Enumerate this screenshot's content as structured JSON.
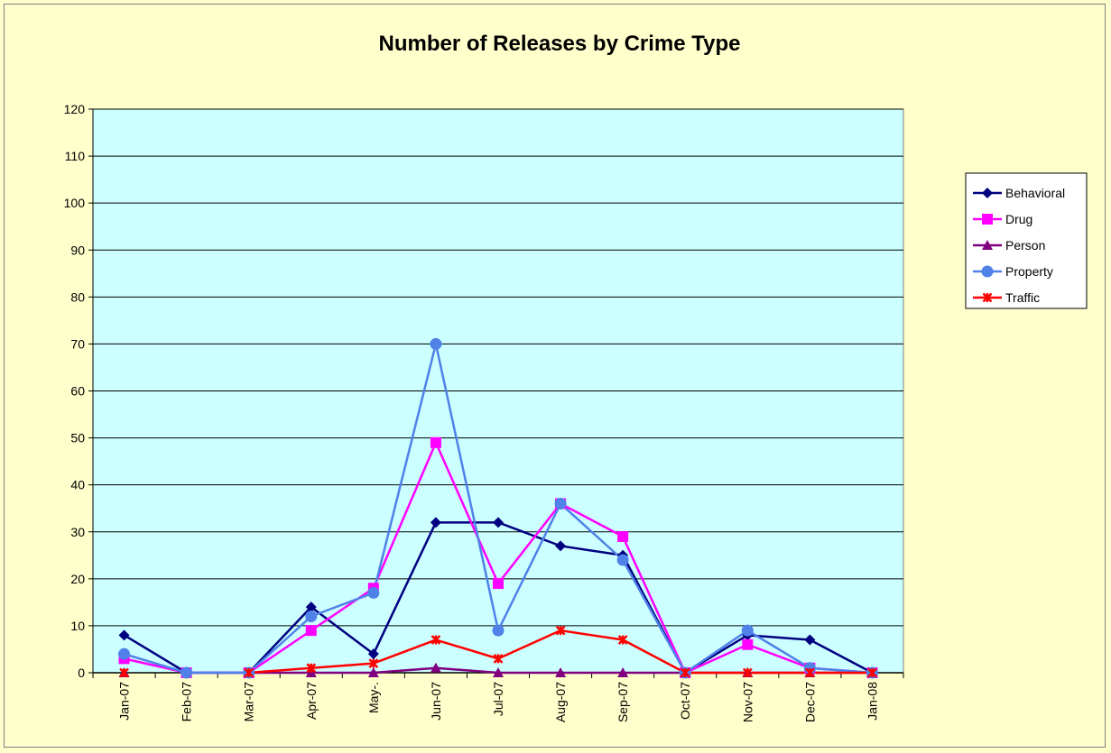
{
  "colors": {
    "page_background": "#ffffcc",
    "plot_background": "#ccffff",
    "gridline": "#000000",
    "border": "#7f7f7f"
  },
  "chart_data": {
    "type": "line",
    "title": "Number of Releases by Crime Type",
    "xlabel": "",
    "ylabel": "",
    "categories": [
      "Jan-07",
      "Feb-07",
      "Mar-07",
      "Apr-07",
      "May-.",
      "Jun-07",
      "Jul-07",
      "Aug-07",
      "Sep-07",
      "Oct-07",
      "Nov-07",
      "Dec-07",
      "Jan-08"
    ],
    "ylim": [
      0,
      120
    ],
    "yticks": [
      0,
      10,
      20,
      30,
      40,
      50,
      60,
      70,
      80,
      90,
      100,
      110,
      120
    ],
    "grid": true,
    "legend_position": "right",
    "series": [
      {
        "name": "Behavioral",
        "color": "#000080",
        "marker": "diamond",
        "values": [
          8,
          0,
          0,
          14,
          4,
          32,
          32,
          27,
          25,
          0,
          8,
          7,
          0
        ]
      },
      {
        "name": "Drug",
        "color": "#ff00ff",
        "marker": "square",
        "values": [
          3,
          0,
          0,
          9,
          18,
          49,
          19,
          36,
          29,
          0,
          6,
          1,
          0
        ]
      },
      {
        "name": "Person",
        "color": "#800080",
        "marker": "triangle",
        "values": [
          0,
          null,
          0,
          0,
          0,
          1,
          0,
          0,
          0,
          0,
          0,
          0,
          0
        ]
      },
      {
        "name": "Property",
        "color": "#4f81e8",
        "marker": "circle",
        "values": [
          4,
          0,
          0,
          12,
          17,
          70,
          9,
          36,
          24,
          0,
          9,
          1,
          0
        ]
      },
      {
        "name": "Traffic",
        "color": "#ff0000",
        "marker": "star",
        "values": [
          0,
          null,
          0,
          1,
          2,
          7,
          3,
          9,
          7,
          0,
          0,
          0,
          0
        ]
      }
    ]
  }
}
